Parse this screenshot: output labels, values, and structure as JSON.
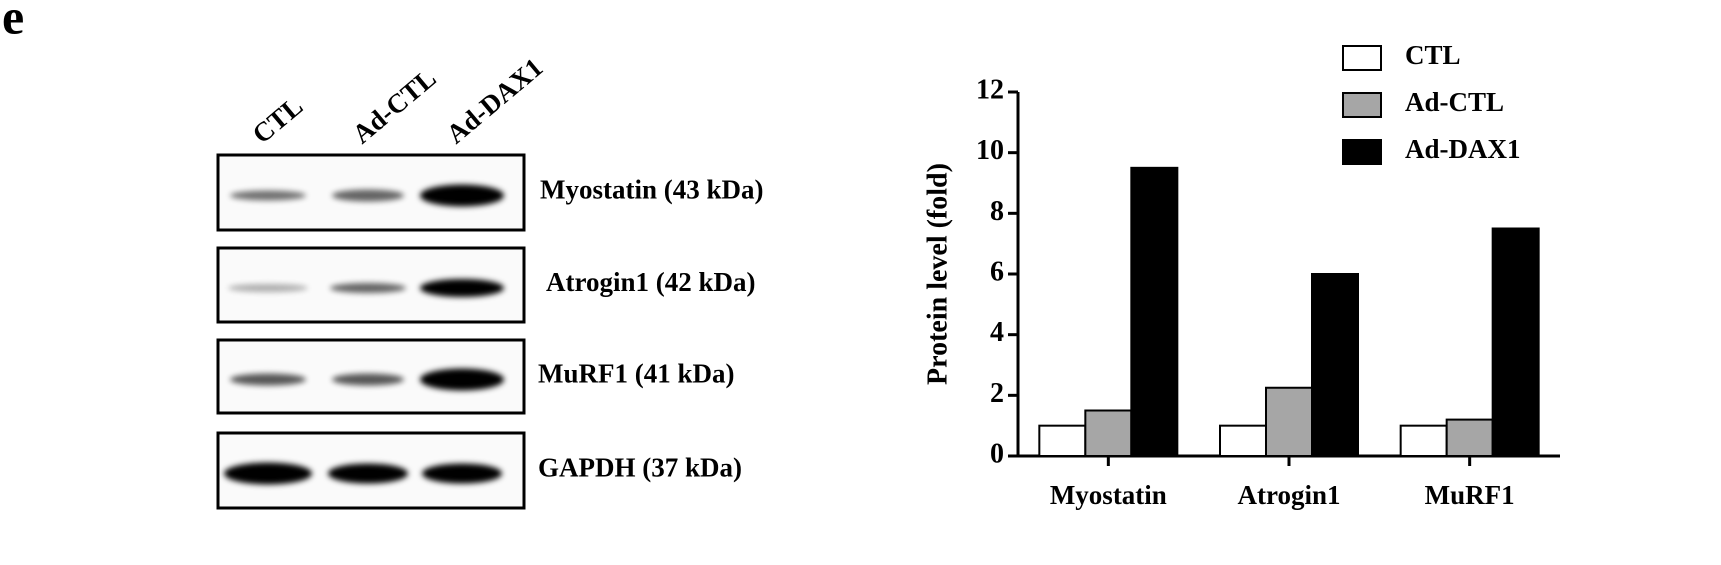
{
  "panel_label": "e",
  "blot": {
    "lanes": [
      "CTL",
      "Ad-CTL",
      "Ad-DAX1"
    ],
    "rows": [
      {
        "label": "Myostatin (43 kDa)"
      },
      {
        "label": "Atrogin1 (42 kDa)"
      },
      {
        "label": "MuRF1 (41 kDa)"
      },
      {
        "label": "GAPDH (37 kDa)"
      }
    ]
  },
  "chart_data": {
    "type": "bar",
    "ylabel": "Protein level (fold)",
    "categories": [
      "Myostatin",
      "Atrogin1",
      "MuRF1"
    ],
    "series": [
      {
        "name": "CTL",
        "color": "#ffffff",
        "values": [
          1,
          1,
          1
        ]
      },
      {
        "name": "Ad-CTL",
        "color": "#a6a6a6",
        "values": [
          1.5,
          2.25,
          1.2
        ]
      },
      {
        "name": "Ad-DAX1",
        "color": "#000000",
        "values": [
          9.5,
          6,
          7.5
        ]
      }
    ],
    "ylim": [
      0,
      12
    ],
    "yticks": [
      0,
      2,
      4,
      6,
      8,
      10,
      12
    ],
    "legend": "upper right"
  }
}
